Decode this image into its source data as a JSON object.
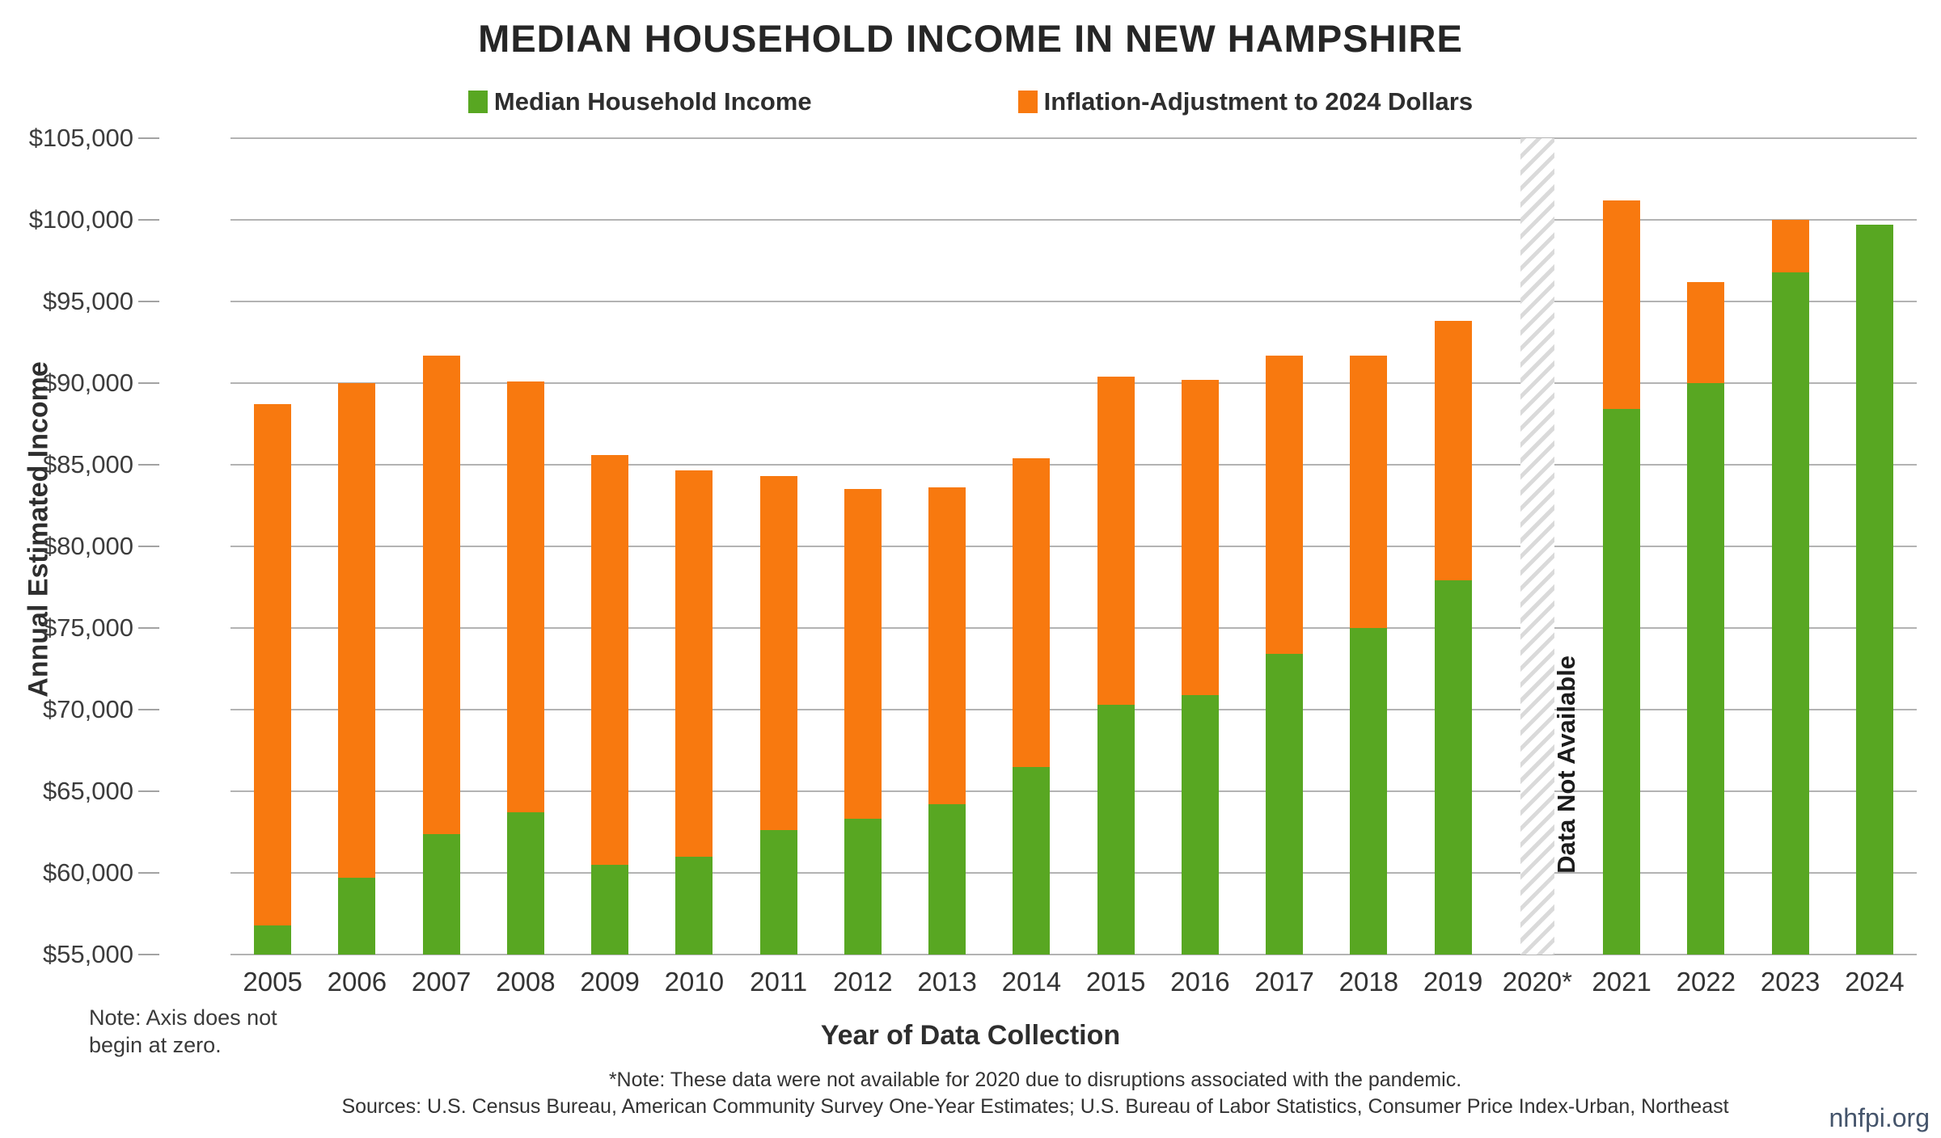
{
  "title": "MEDIAN HOUSEHOLD INCOME IN NEW HAMPSHIRE",
  "legend": [
    {
      "label": "Median Household Income",
      "color": "#58A722"
    },
    {
      "label": "Inflation-Adjustment to 2024 Dollars",
      "color": "#F8790F"
    }
  ],
  "y_axis": {
    "title": "Annual Estimated Income",
    "min": 55000,
    "max": 105000,
    "step": 5000,
    "tick_labels": [
      "$105,000",
      "$100,000",
      "$95,000",
      "$90,000",
      "$85,000",
      "$80,000",
      "$75,000",
      "$70,000",
      "$65,000",
      "$60,000",
      "$55,000"
    ]
  },
  "x_axis": {
    "title": "Year of Data Collection"
  },
  "chart_data": {
    "type": "bar",
    "subtype": "stacked",
    "categories": [
      "2005",
      "2006",
      "2007",
      "2008",
      "2009",
      "2010",
      "2011",
      "2012",
      "2013",
      "2014",
      "2015",
      "2016",
      "2017",
      "2018",
      "2019",
      "2020*",
      "2021",
      "2022",
      "2023",
      "2024"
    ],
    "series": [
      {
        "name": "Median Household Income",
        "color": "#58A722",
        "values": [
          56800,
          59700,
          62400,
          63700,
          60500,
          61000,
          62600,
          63300,
          64200,
          66500,
          70300,
          70900,
          73400,
          75000,
          77900,
          null,
          88400,
          90000,
          96800,
          99700
        ]
      },
      {
        "name": "Inflation-Adjustment to 2024 Dollars",
        "color": "#F8790F",
        "values": [
          31900,
          30300,
          29300,
          26400,
          25100,
          23650,
          21700,
          20200,
          19400,
          18900,
          20100,
          19300,
          18300,
          16700,
          15900,
          null,
          12800,
          6200,
          3200,
          0
        ]
      }
    ],
    "totals_2024_dollars": [
      88700,
      90000,
      91700,
      90100,
      85600,
      84650,
      84300,
      83500,
      83600,
      85400,
      90400,
      90200,
      91700,
      91700,
      93800,
      null,
      101200,
      96200,
      100000,
      99700
    ],
    "na_category": "2020*",
    "na_label": "Data Not Available",
    "ylim": [
      55000,
      105000
    ],
    "grid": "horizontal",
    "legend_position": "top",
    "gridline_color": "#a6a6a6"
  },
  "notes": {
    "axis_note_line1": "Note: Axis does not",
    "axis_note_line2": "begin at zero.",
    "footnote": "*Note: These data were not available for 2020 due to disruptions associated with the pandemic.",
    "sources": "Sources: U.S. Census Bureau, American Community Survey One-Year Estimates; U.S. Bureau of Labor Statistics, Consumer Price Index-Urban, Northeast",
    "brand": "nhfpi.org"
  }
}
